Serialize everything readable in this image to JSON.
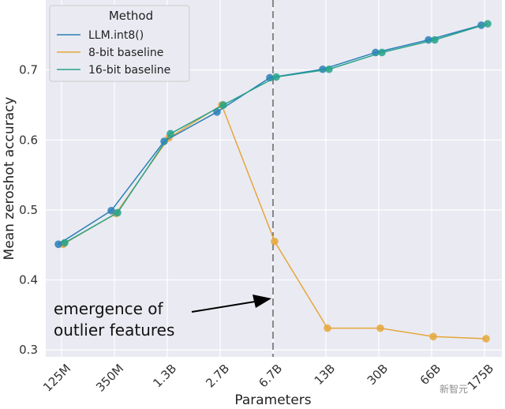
{
  "chart_data": {
    "type": "line",
    "title": "",
    "xlabel": "Parameters",
    "ylabel": "Mean zeroshot accuracy",
    "categories": [
      "125M",
      "350M",
      "1.3B",
      "2.7B",
      "6.7B",
      "13B",
      "30B",
      "66B",
      "175B"
    ],
    "ylim": [
      0.29,
      0.8
    ],
    "yticks": [
      "0.3",
      "0.4",
      "0.5",
      "0.6",
      "0.7"
    ],
    "grid": true,
    "legend": {
      "title": "Method",
      "placement": "top-left"
    },
    "series": [
      {
        "name": "LLM.int8()",
        "color": "#2a7fb8",
        "values": [
          0.451,
          0.499,
          0.598,
          0.64,
          0.689,
          0.701,
          0.725,
          0.743,
          0.764
        ]
      },
      {
        "name": "8-bit baseline",
        "color": "#e5a73b",
        "values": [
          0.451,
          0.495,
          0.603,
          0.65,
          0.455,
          0.331,
          0.331,
          0.319,
          0.316
        ]
      },
      {
        "name": "16-bit baseline",
        "color": "#27a38a",
        "values": [
          0.453,
          0.496,
          0.609,
          0.65,
          0.69,
          0.701,
          0.725,
          0.743,
          0.766
        ]
      }
    ],
    "annotation": {
      "line1": "emergence of",
      "line2": "outlier features",
      "at_category": "6.7B"
    }
  },
  "watermark": "新智元"
}
